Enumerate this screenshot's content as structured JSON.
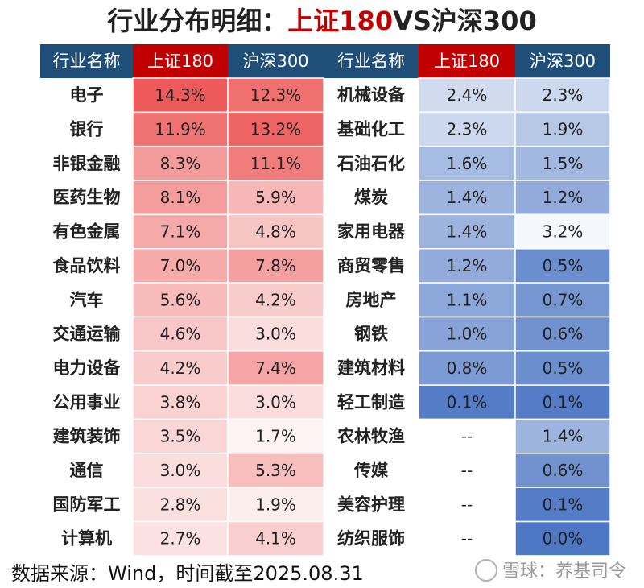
{
  "title": {
    "part1": "行业分布明细：",
    "part2": "上证180",
    "part3": "VS沪深300"
  },
  "columns": [
    "行业名称",
    "上证180",
    "沪深300",
    "行业名称",
    "上证180",
    "沪深300"
  ],
  "colors": {
    "header_blue": "#1f4e79",
    "header_red": "#c00000",
    "high_red": "#ee5a5a",
    "high_blue": "#4f78c4",
    "empty_cell": "#ffffff"
  },
  "chart_data": {
    "type": "table",
    "left": {
      "industries": [
        "电子",
        "银行",
        "非银金融",
        "医药生物",
        "有色金属",
        "食品饮料",
        "汽车",
        "交通运输",
        "电力设备",
        "公用事业",
        "建筑装饰",
        "通信",
        "国防军工",
        "计算机"
      ],
      "sse180": [
        "14.3%",
        "11.9%",
        "8.3%",
        "8.1%",
        "7.1%",
        "7.0%",
        "5.6%",
        "4.6%",
        "4.2%",
        "3.8%",
        "3.5%",
        "3.0%",
        "2.8%",
        "2.7%"
      ],
      "csi300": [
        "12.3%",
        "13.2%",
        "11.1%",
        "5.9%",
        "4.8%",
        "7.8%",
        "4.2%",
        "3.0%",
        "7.4%",
        "3.0%",
        "1.7%",
        "5.3%",
        "1.9%",
        "4.1%"
      ]
    },
    "right": {
      "industries": [
        "机械设备",
        "基础化工",
        "石油石化",
        "煤炭",
        "家用电器",
        "商贸零售",
        "房地产",
        "钢铁",
        "建筑材料",
        "轻工制造",
        "农林牧渔",
        "传媒",
        "美容护理",
        "纺织服饰"
      ],
      "sse180": [
        "2.4%",
        "2.3%",
        "1.6%",
        "1.4%",
        "1.4%",
        "1.2%",
        "1.1%",
        "1.0%",
        "0.8%",
        "0.1%",
        "--",
        "--",
        "--",
        "--"
      ],
      "csi300": [
        "2.3%",
        "1.9%",
        "1.5%",
        "1.2%",
        "3.2%",
        "0.5%",
        "0.7%",
        "0.6%",
        "0.5%",
        "0.1%",
        "1.4%",
        "0.6%",
        "0.1%",
        "0.0%"
      ]
    }
  },
  "footer": {
    "source": "数据来源：Wind，时间截至2025.08.31",
    "watermark": "雪球：养基司令"
  }
}
